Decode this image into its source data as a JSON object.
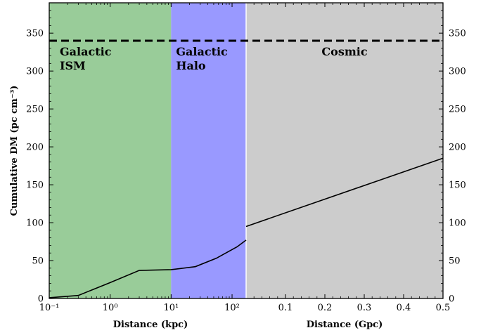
{
  "chart_data": {
    "type": "line",
    "ylabel": "Cumulative DM (pc cm⁻³)",
    "ylim": [
      0,
      390
    ],
    "yticks": [
      0,
      50,
      100,
      150,
      200,
      250,
      300,
      350
    ],
    "grid": false,
    "threshold": {
      "value": 340,
      "style": "dashed"
    },
    "panels": [
      {
        "xscale": "log",
        "xlabel": "Distance (kpc)",
        "xlim": [
          0.1,
          170
        ],
        "xtick_labels": [
          "10⁻¹",
          "10⁰",
          "10¹",
          "10²"
        ],
        "xtick_values": [
          0.1,
          1,
          10,
          100
        ]
      },
      {
        "xscale": "linear",
        "xlabel": "Distance (Gpc)",
        "xlim": [
          0,
          0.5
        ],
        "xtick_labels": [
          "0.1",
          "0.2",
          "0.3",
          "0.4",
          "0.5"
        ],
        "xtick_values": [
          0.1,
          0.2,
          0.3,
          0.4,
          0.5
        ]
      }
    ],
    "regions": [
      {
        "name": "Galactic ISM",
        "lines": [
          "Galactic",
          "ISM"
        ],
        "panel": 0,
        "x": [
          0.1,
          10
        ],
        "color": "#99cc99"
      },
      {
        "name": "Galactic Halo",
        "lines": [
          "Galactic",
          "Halo"
        ],
        "panel": 0,
        "x": [
          10,
          170
        ],
        "color": "#9999ff"
      },
      {
        "name": "Cosmic",
        "lines": [
          "Cosmic"
        ],
        "panel": 1,
        "x": [
          0,
          0.5
        ],
        "color": "#cccccc"
      }
    ],
    "series": [
      {
        "panel": 0,
        "x": [
          0.1,
          0.3,
          1,
          3,
          10,
          25,
          55,
          120,
          170
        ],
        "y": [
          1,
          4,
          21,
          37,
          38,
          42,
          53,
          68,
          77
        ]
      },
      {
        "panel": 1,
        "x": [
          0.0,
          0.5
        ],
        "y": [
          95,
          185
        ]
      }
    ]
  }
}
